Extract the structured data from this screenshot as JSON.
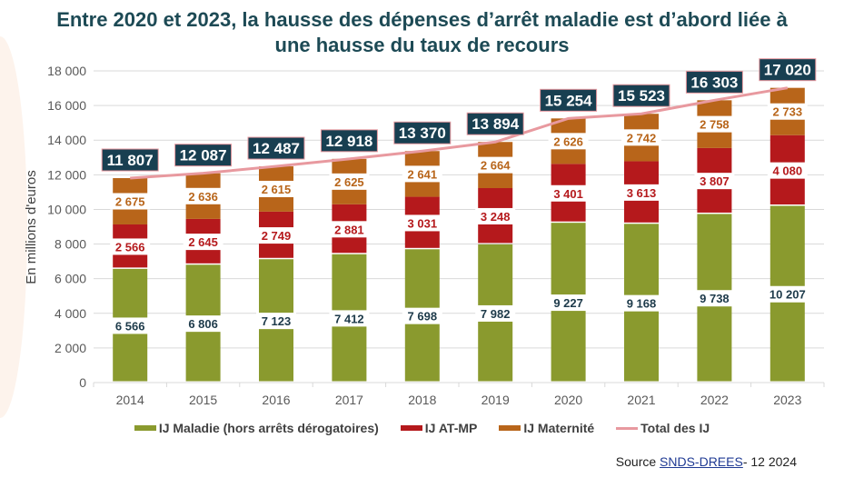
{
  "chart_data": {
    "type": "bar",
    "stacked": true,
    "title": "Entre 2020 et 2023, la hausse des dépenses d’arrêt maladie est d’abord liée à une hausse du taux de recours",
    "ylabel": "En millions d'euros",
    "xlabel": "",
    "ylim": [
      0,
      18000
    ],
    "yticks": [
      0,
      2000,
      4000,
      6000,
      8000,
      10000,
      12000,
      14000,
      16000,
      18000
    ],
    "ytick_labels": [
      "0",
      "2 000",
      "4 000",
      "6 000",
      "8 000",
      "10 000",
      "12 000",
      "14 000",
      "16 000",
      "18 000"
    ],
    "grid": true,
    "legend_position": "bottom",
    "categories": [
      "2014",
      "2015",
      "2016",
      "2017",
      "2018",
      "2019",
      "2020",
      "2021",
      "2022",
      "2023"
    ],
    "series": [
      {
        "name": "IJ Maladie (hors arrêts dérogatoires)",
        "color": "#8a9a2e",
        "values": [
          6566,
          6806,
          7123,
          7412,
          7698,
          7982,
          9227,
          9168,
          9738,
          10207
        ],
        "labels": [
          "6 566",
          "6 806",
          "7 123",
          "7 412",
          "7 698",
          "7 982",
          "9 227",
          "9 168",
          "9 738",
          "10 207"
        ],
        "label_color": "#1d3a4a"
      },
      {
        "name": "IJ AT-MP",
        "color": "#b5191c",
        "values": [
          2566,
          2645,
          2749,
          2881,
          3031,
          3248,
          3401,
          3613,
          3807,
          4080
        ],
        "labels": [
          "2 566",
          "2 645",
          "2 749",
          "2 881",
          "3 031",
          "3 248",
          "3 401",
          "3 613",
          "3 807",
          "4 080"
        ],
        "label_color": "#b5191c"
      },
      {
        "name": "IJ Maternité",
        "color": "#b8651a",
        "values": [
          2675,
          2636,
          2615,
          2625,
          2641,
          2664,
          2626,
          2742,
          2758,
          2733
        ],
        "labels": [
          "2 675",
          "2 636",
          "2 615",
          "2 625",
          "2 641",
          "2 664",
          "2 626",
          "2 742",
          "2 758",
          "2 733"
        ],
        "label_color": "#b8651a"
      },
      {
        "name": "Total des IJ",
        "type": "line",
        "color": "#e8999f",
        "values": [
          11807,
          12087,
          12487,
          12918,
          13370,
          13894,
          15254,
          15523,
          16303,
          17020
        ],
        "labels": [
          "11 807",
          "12 087",
          "12 487",
          "12 918",
          "13 370",
          "13 894",
          "15 254",
          "15 523",
          "16 303",
          "17 020"
        ]
      }
    ]
  },
  "source": {
    "prefix": "Source ",
    "link": "SNDS-DREES",
    "suffix": "- 12 2024"
  }
}
